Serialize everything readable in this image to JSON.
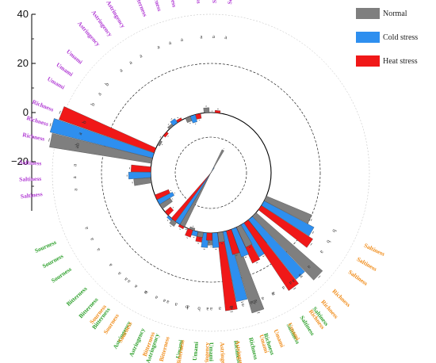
{
  "colors": {
    "normal": "#7f7f7f",
    "cold": "#2e8fef",
    "heat": "#f01818"
  },
  "group_colors": [
    "#2ea02c",
    "#f08c1a",
    "#b13bd4"
  ],
  "chart_data": {
    "type": "bar",
    "layout": "circular",
    "ylim": [
      -40,
      40
    ],
    "yticks": [
      "40",
      "20",
      "0",
      "−20"
    ],
    "legend_position": "top-right",
    "series": [
      {
        "name": "Normal",
        "color": "#7f7f7f"
      },
      {
        "name": "Cold stress",
        "color": "#2e8fef"
      },
      {
        "name": "Heat stress",
        "color": "#f01818"
      }
    ],
    "groups": [
      {
        "categories": [
          {
            "name": "Sourness",
            "values": [
              -5,
              -7,
              -6
            ],
            "letters": [
              "a",
              "a",
              "a"
            ]
          },
          {
            "name": "Bitterness",
            "values": [
              2,
              1,
              -3
            ],
            "letters": [
              "a",
              "a",
              "a"
            ]
          },
          {
            "name": "Astringency",
            "values": [
              -1,
              0,
              1
            ],
            "letters": [
              "a",
              "a",
              "a"
            ]
          },
          {
            "name": "Umami",
            "values": [
              5,
              6,
              4
            ],
            "letters": [
              "a",
              "b",
              "b"
            ]
          },
          {
            "name": "Richness",
            "values": [
              35,
              29,
              32
            ],
            "letters": [
              "ab",
              "a",
              "b"
            ]
          },
          {
            "name": "Saltiness",
            "values": [
              12,
              15,
              16
            ],
            "letters": [
              "a",
              "a",
              "a"
            ]
          }
        ]
      },
      {
        "categories": [
          {
            "name": "Saltiness",
            "values": [
              20,
              23,
              25
            ],
            "letters": [
              "b",
              "b",
              "a"
            ]
          },
          {
            "name": "Richness",
            "values": [
              36,
              31,
              33
            ],
            "letters": [
              "a",
              "a",
              "a"
            ]
          },
          {
            "name": "Umami",
            "values": [
              9,
              12,
              10
            ],
            "letters": [
              "a",
              "a",
              "a"
            ]
          },
          {
            "name": "Astringency",
            "values": [
              4,
              6,
              3
            ],
            "letters": [
              "a",
              "a",
              "a"
            ]
          },
          {
            "name": "Bitterness",
            "values": [
              2,
              2,
              3
            ],
            "letters": [
              "a",
              "a",
              "a"
            ]
          },
          {
            "name": "Sourness",
            "values": [
              -35,
              -27,
              -25
            ],
            "letters": [
              "a",
              "a",
              "a"
            ]
          }
        ]
      },
      {
        "categories": [
          {
            "name": "Sourness",
            "values": [
              2,
              0,
              1
            ],
            "letters": [
              "a",
              "a",
              "a"
            ]
          },
          {
            "name": "Bitterness",
            "values": [
              -2,
              -3,
              -2
            ],
            "letters": [
              "a",
              "a",
              "a"
            ]
          },
          {
            "name": "Astringency",
            "values": [
              1,
              2,
              1
            ],
            "letters": [
              "a",
              "a",
              "a"
            ]
          },
          {
            "name": "Umami",
            "values": [
              -1,
              0,
              -1
            ],
            "letters": [
              "b",
              "a",
              "b"
            ]
          },
          {
            "name": "Richness",
            "values": [
              42,
              43,
              41
            ],
            "letters": [
              "ab",
              "a",
              "b"
            ]
          },
          {
            "name": "Saltiness",
            "values": [
              7,
              9,
              8
            ],
            "letters": [
              "a",
              "a",
              "a"
            ]
          }
        ]
      }
    ]
  }
}
